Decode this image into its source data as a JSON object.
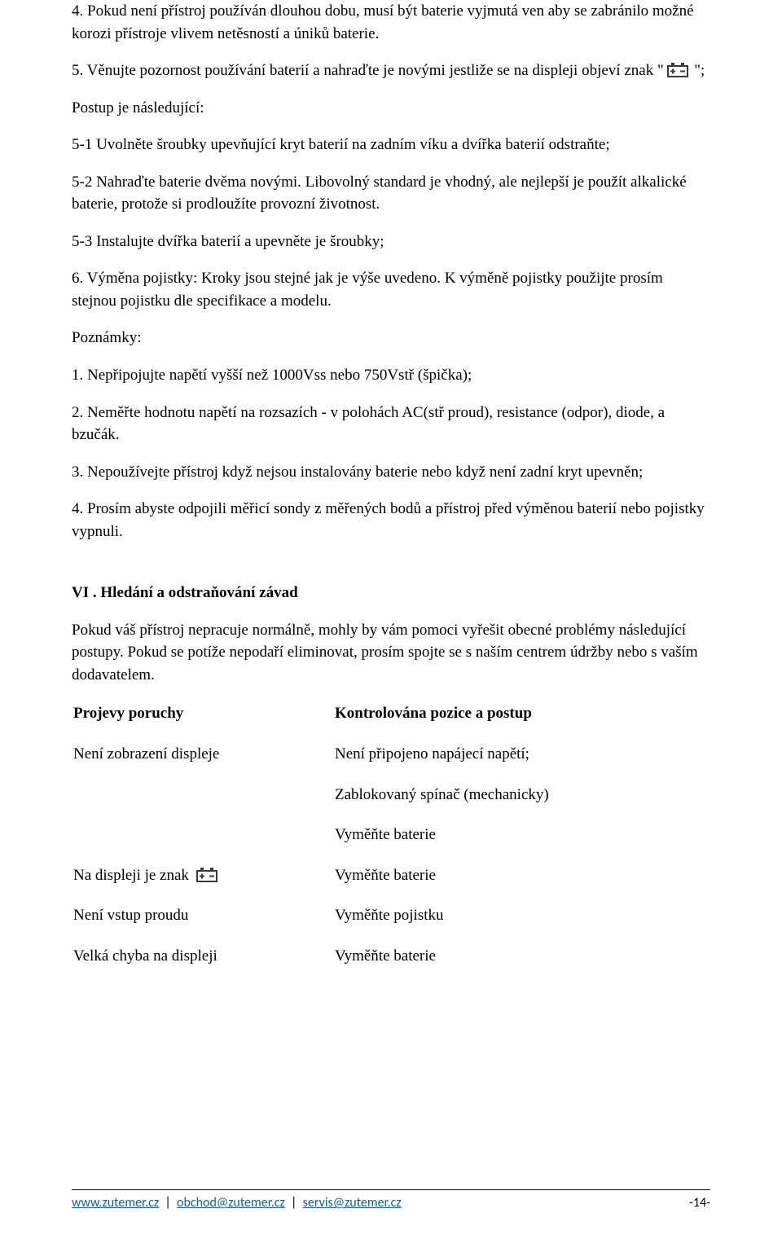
{
  "p4": "4. Pokud není přístroj používán dlouhou dobu, musí být baterie vyjmutá ven aby se zabránilo možné korozi přístroje vlivem netěsností a úniků baterie.",
  "p5a": "5. Věnujte pozornost používání baterií a nahraďte je novými jestliže se na displeji objeví znak \" ",
  "p5b": " \";",
  "p5post": "Postup je následující:",
  "p51": "5-1 Uvolněte šroubky upevňující kryt baterií na zadním víku a dvířka baterií odstraňte;",
  "p52": "5-2 Nahraďte baterie dvěma novými. Libovolný standard je vhodný, ale nejlepší je použít alkalické baterie, protože si prodloužíte provozní životnost.",
  "p53": "5-3 Instalujte dvířka baterií a upevněte je šroubky;",
  "p6": "6. Výměna pojistky: Kroky jsou stejné jak je výše uvedeno. K výměně pojistky použijte prosím stejnou pojistku dle specifikace a modelu.",
  "notesLabel": "Poznámky:",
  "n1": "1. Nepřipojujte napětí vyšší než 1000Vss nebo 750Vstř (špička);",
  "n2": "2. Neměřte hodnotu napětí na rozsazích - v polohách AC(stř proud), resistance (odpor), diode, a bzučák.",
  "n3": "3. Nepoužívejte přístroj když nejsou instalovány baterie nebo když není zadní kryt upevněn;",
  "n4": "4. Prosím abyste odpojili měřicí sondy z měřených bodů a přístroj před výměnou baterií nebo pojistky vypnuli.",
  "h6": "VI . Hledání a odstraňování závad",
  "h6p": "Pokud váš přístroj nepracuje normálně, mohly by vám pomoci vyřešit obecné problémy následující postupy. Pokud se potíže nepodaří eliminovat, prosím spojte se s naším centrem údržby nebo s vaším dodavatelem.",
  "thA": "Projevy poruchy",
  "thB": "Kontrolována pozice a postup",
  "r1a": "Není zobrazení displeje",
  "r1b": "Není připojeno napájecí napětí;",
  "r1c": "Zablokovaný spínač (mechanicky)",
  "r1d": "Vyměňte baterie",
  "r2a": "Na displeji je znak  ",
  "r2b": "Vyměňte baterie",
  "r3a": "Není vstup proudu",
  "r3b": "Vyměňte pojistku",
  "r4a": "Velká chyba na displeji",
  "r4b": "Vyměňte baterie",
  "foot": {
    "a": "www.zutemer.cz",
    "b": "obchod@zutemer.cz",
    "c": "servis@zutemer.cz",
    "sep": "  |  ",
    "page": "-14-"
  },
  "footerTop": 1460,
  "battery": {
    "svg": "<svg viewBox='0 0 28 20' xmlns='http://www.w3.org/2000/svg'><rect x='1' y='6' width='24' height='13' fill='none' stroke='#3a3a3a' stroke-width='2'/><rect x='5' y='2' width='4' height='4' fill='#3a3a3a'/><rect x='17' y='2' width='4' height='4' fill='#3a3a3a'/><line x1='4' y1='12.5' x2='10' y2='12.5' stroke='#3a3a3a' stroke-width='2'/><line x1='7' y1='9.5' x2='7' y2='15.5' stroke='#3a3a3a' stroke-width='2'/><line x1='16' y1='12.5' x2='22' y2='12.5' stroke='#3a3a3a' stroke-width='2'/></svg>"
  }
}
